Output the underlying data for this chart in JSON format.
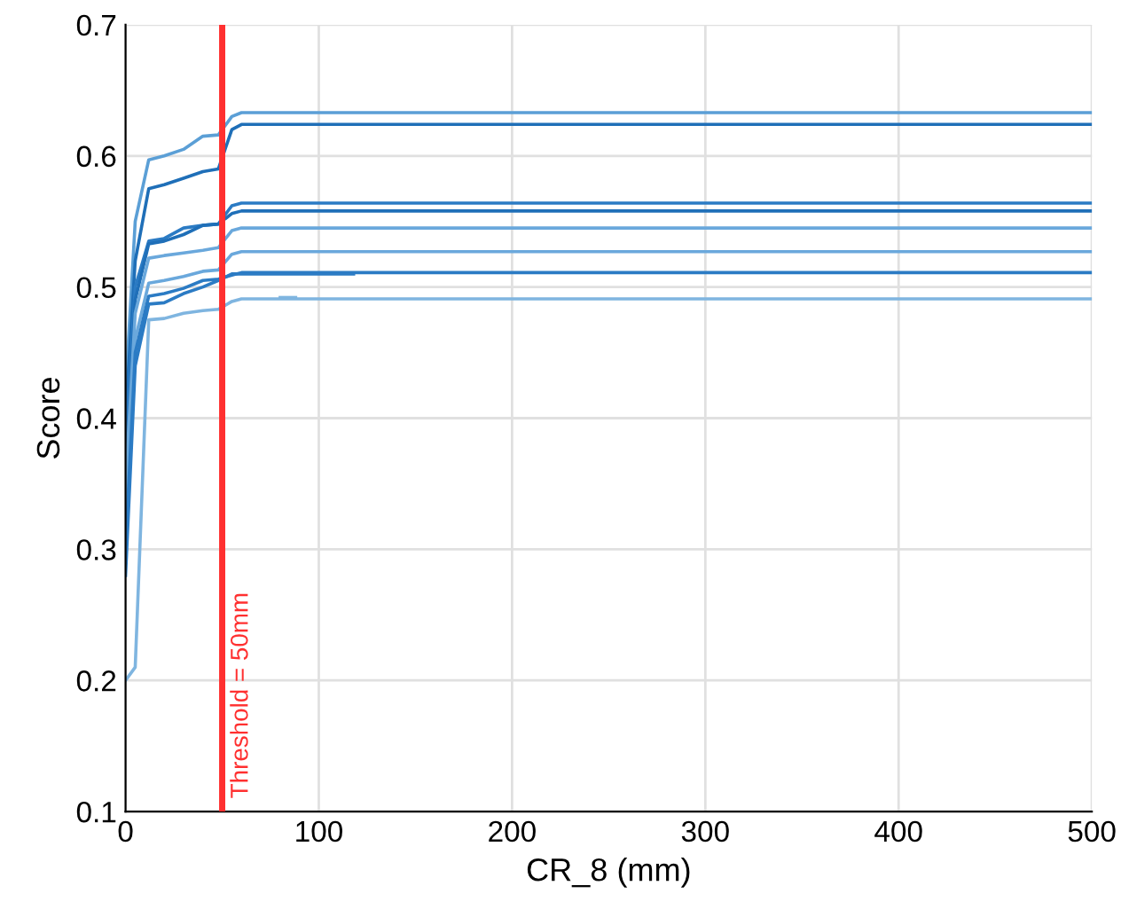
{
  "chart_data": {
    "type": "line",
    "xlabel": "CR_8 (mm)",
    "ylabel": "Score",
    "xlim": [
      0,
      500
    ],
    "ylim": [
      0.1,
      0.7
    ],
    "xticks": [
      0,
      100,
      200,
      300,
      400,
      500
    ],
    "yticks": [
      0.1,
      0.2,
      0.3,
      0.4,
      0.5,
      0.6,
      0.7
    ],
    "grid": true,
    "legend": false,
    "series": [
      {
        "color": "#5b9fd6",
        "x": [
          0,
          5,
          12,
          20,
          30,
          40,
          48,
          55,
          60,
          500
        ],
        "values": [
          0.42,
          0.55,
          0.597,
          0.6,
          0.605,
          0.615,
          0.616,
          0.63,
          0.633,
          0.633
        ]
      },
      {
        "color": "#1f6fb8",
        "x": [
          0,
          5,
          12,
          20,
          30,
          40,
          48,
          55,
          60,
          500
        ],
        "values": [
          0.4,
          0.52,
          0.575,
          0.578,
          0.583,
          0.588,
          0.59,
          0.62,
          0.624,
          0.624
        ]
      },
      {
        "color": "#2b7bc4",
        "x": [
          0,
          5,
          12,
          20,
          30,
          40,
          48,
          55,
          60,
          500
        ],
        "values": [
          0.38,
          0.5,
          0.535,
          0.537,
          0.545,
          0.547,
          0.548,
          0.562,
          0.564,
          0.564
        ]
      },
      {
        "color": "#1f6fb8",
        "x": [
          0,
          5,
          12,
          20,
          30,
          40,
          48,
          55,
          60,
          500
        ],
        "values": [
          0.36,
          0.49,
          0.533,
          0.535,
          0.54,
          0.547,
          0.548,
          0.556,
          0.558,
          0.558
        ]
      },
      {
        "color": "#6aa8dc",
        "x": [
          0,
          5,
          12,
          20,
          30,
          40,
          48,
          55,
          60,
          500
        ],
        "values": [
          0.35,
          0.48,
          0.522,
          0.524,
          0.526,
          0.528,
          0.53,
          0.543,
          0.545,
          0.545
        ]
      },
      {
        "color": "#6aa8dc",
        "x": [
          0,
          5,
          12,
          20,
          30,
          40,
          48,
          55,
          60,
          500
        ],
        "values": [
          0.33,
          0.46,
          0.503,
          0.505,
          0.508,
          0.512,
          0.513,
          0.525,
          0.527,
          0.527
        ]
      },
      {
        "color": "#2b7bc4",
        "x": [
          0,
          5,
          12,
          20,
          30,
          40,
          48,
          55,
          60,
          500
        ],
        "values": [
          0.3,
          0.45,
          0.493,
          0.495,
          0.499,
          0.505,
          0.506,
          0.509,
          0.511,
          0.511
        ]
      },
      {
        "color": "#7fb5e0",
        "x": [
          0,
          5,
          12,
          20,
          30,
          40,
          48,
          55,
          60,
          500
        ],
        "values": [
          0.2,
          0.21,
          0.475,
          0.476,
          0.48,
          0.482,
          0.483,
          0.489,
          0.491,
          0.491
        ]
      },
      {
        "color": "#2b7bc4",
        "x": [
          0,
          5,
          12,
          20,
          30,
          40,
          48,
          55,
          118
        ],
        "values": [
          0.28,
          0.44,
          0.487,
          0.488,
          0.495,
          0.5,
          0.505,
          0.51,
          0.51
        ]
      },
      {
        "color": "#7fb5e0",
        "x": [
          80,
          88
        ],
        "values": [
          0.492,
          0.492
        ]
      }
    ],
    "ref_lines": [
      {
        "axis": "x",
        "value": 50,
        "label": "Threshold = 50mm",
        "color": "#ff3030"
      }
    ]
  }
}
